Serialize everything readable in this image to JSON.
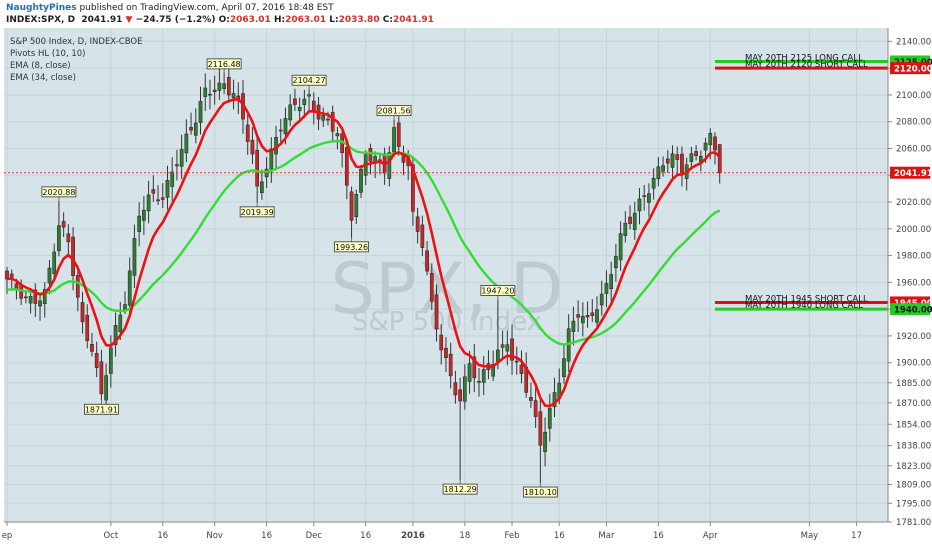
{
  "header": {
    "user": "NaughtyPines",
    "published": "published on TradingView.com, April 07, 2016 18:48 EST",
    "symbol": "INDEX:SPX, D",
    "price": "2041.91",
    "change": "−24.75 (−1.2%)",
    "o_label": "O:",
    "o": "2063.01",
    "h_label": "H:",
    "h": "2063.01",
    "l_label": "L:",
    "l": "2033.80",
    "c_label": "C:",
    "c": "2041.91"
  },
  "legend": [
    "S&P 500 Index, D, INDEX-CBOE",
    "Pivots HL (10, 10)",
    "EMA (8, close)",
    "EMA (34, close)"
  ],
  "watermark": {
    "big": "SPX, D",
    "small": "S&P 500 Index"
  },
  "colors": {
    "up": "#2e7d32",
    "down": "#c62828",
    "ema8": "#ee1111",
    "ema34": "#33dd33",
    "bg": "#d6e4ea",
    "pivot_bg": "#ffffc8"
  },
  "chart_data": {
    "type": "candlestick",
    "title": "S&P 500 Index, D, INDEX-CBOE",
    "ylim": [
      1781,
      2150
    ],
    "yticks": [
      2140,
      2120,
      2100,
      2080,
      2060,
      2040,
      2020,
      2000,
      1980,
      1960,
      1940,
      1920,
      1900,
      1885,
      1870,
      1854,
      1838,
      1823,
      1809,
      1795,
      1781
    ],
    "ytick_labels": [
      "2140.00",
      "2120.00",
      "2100.00",
      "2080.00",
      "2060.00",
      "2040.00",
      "2020.00",
      "2000.00",
      "1980.00",
      "1960.00",
      "1940.00",
      "1920.00",
      "1900.00",
      "1885.00",
      "1870.00",
      "1854.00",
      "1838.00",
      "1823.00",
      "1809.00",
      "1795.00",
      "1781.00"
    ],
    "xticks": [
      {
        "label": "ep",
        "idx": 0
      },
      {
        "label": "Oct",
        "idx": 22
      },
      {
        "label": "16",
        "idx": 33
      },
      {
        "label": "Nov",
        "idx": 44
      },
      {
        "label": "16",
        "idx": 55
      },
      {
        "label": "Dec",
        "idx": 65
      },
      {
        "label": "16",
        "idx": 76
      },
      {
        "label": "2016",
        "idx": 86
      },
      {
        "label": "18",
        "idx": 97
      },
      {
        "label": "Feb",
        "idx": 107
      },
      {
        "label": "16",
        "idx": 117
      },
      {
        "label": "Mar",
        "idx": 127
      },
      {
        "label": "16",
        "idx": 138
      },
      {
        "label": "Apr",
        "idx": 149
      },
      {
        "label": "May",
        "idx": 170
      },
      {
        "label": "17",
        "idx": 180
      }
    ],
    "anchors": [
      [
        0,
        1960
      ],
      [
        4,
        1948
      ],
      [
        8,
        1952
      ],
      [
        11,
        2000
      ],
      [
        13,
        1990
      ],
      [
        16,
        1930
      ],
      [
        18,
        1912
      ],
      [
        20,
        1872
      ],
      [
        22,
        1910
      ],
      [
        25,
        1950
      ],
      [
        28,
        2012
      ],
      [
        30,
        2020
      ],
      [
        33,
        2023
      ],
      [
        36,
        2055
      ],
      [
        40,
        2080
      ],
      [
        42,
        2100
      ],
      [
        44,
        2106
      ],
      [
        46,
        2110
      ],
      [
        48,
        2102
      ],
      [
        50,
        2080
      ],
      [
        52,
        2052
      ],
      [
        53,
        2028
      ],
      [
        55,
        2050
      ],
      [
        58,
        2078
      ],
      [
        61,
        2090
      ],
      [
        64,
        2098
      ],
      [
        66,
        2088
      ],
      [
        68,
        2080
      ],
      [
        70,
        2070
      ],
      [
        72,
        2030
      ],
      [
        73,
        2010
      ],
      [
        76,
        2060
      ],
      [
        78,
        2052
      ],
      [
        80,
        2042
      ],
      [
        82,
        2070
      ],
      [
        83,
        2060
      ],
      [
        85,
        2050
      ],
      [
        86,
        2012
      ],
      [
        88,
        1990
      ],
      [
        90,
        1940
      ],
      [
        92,
        1910
      ],
      [
        94,
        1890
      ],
      [
        96,
        1875
      ],
      [
        98,
        1900
      ],
      [
        100,
        1882
      ],
      [
        102,
        1895
      ],
      [
        104,
        1908
      ],
      [
        106,
        1920
      ],
      [
        107,
        1905
      ],
      [
        109,
        1890
      ],
      [
        111,
        1868
      ],
      [
        113,
        1840
      ],
      [
        115,
        1866
      ],
      [
        117,
        1890
      ],
      [
        119,
        1920
      ],
      [
        121,
        1935
      ],
      [
        123,
        1930
      ],
      [
        125,
        1946
      ],
      [
        127,
        1958
      ],
      [
        129,
        1980
      ],
      [
        131,
        2000
      ],
      [
        133,
        2012
      ],
      [
        135,
        2028
      ],
      [
        137,
        2038
      ],
      [
        139,
        2048
      ],
      [
        141,
        2050
      ],
      [
        143,
        2046
      ],
      [
        145,
        2055
      ],
      [
        147,
        2060
      ],
      [
        149,
        2066
      ],
      [
        151,
        2050
      ]
    ],
    "ohlc_last": {
      "open": 2063.01,
      "high": 2063.01,
      "low": 2033.8,
      "close": 2041.91
    },
    "series": [
      {
        "name": "S&P 500 Index",
        "type": "candlestick"
      },
      {
        "name": "EMA (8, close)",
        "type": "line"
      },
      {
        "name": "EMA (34, close)",
        "type": "line"
      }
    ],
    "pivots": [
      {
        "label": "2020.88",
        "type": "high",
        "idx": 11
      },
      {
        "label": "1871.91",
        "type": "low",
        "idx": 20
      },
      {
        "label": "2116.48",
        "type": "high",
        "idx": 46
      },
      {
        "label": "2019.39",
        "type": "low",
        "idx": 53
      },
      {
        "label": "2104.27",
        "type": "high",
        "idx": 64
      },
      {
        "label": "1993.26",
        "type": "low",
        "idx": 73
      },
      {
        "label": "2081.56",
        "type": "high",
        "idx": 82
      },
      {
        "label": "1812.29",
        "type": "low",
        "idx": 96
      },
      {
        "label": "1947.20",
        "type": "high",
        "idx": 104
      },
      {
        "label": "1810.10",
        "type": "low",
        "idx": 113
      }
    ],
    "hlines": [
      {
        "text": "MAY 20TH 2125 LONG CALL",
        "value": 2125,
        "color": "#22cc22",
        "tag": "2125.00"
      },
      {
        "text": "MAY 20TH 2120 SHORT CALL",
        "value": 2120,
        "color": "#dd1111",
        "tag": "2120.00"
      },
      {
        "text": "MAY 20TH 1945 SHORT CALL",
        "value": 1945,
        "color": "#dd1111",
        "tag": "1945.00"
      },
      {
        "text": "MAY 20TH 1940 LONG CALL",
        "value": 1940,
        "color": "#22cc22",
        "tag": "1940.00"
      }
    ],
    "last_price": {
      "value": 2041.91,
      "tag": "2041.91"
    }
  }
}
